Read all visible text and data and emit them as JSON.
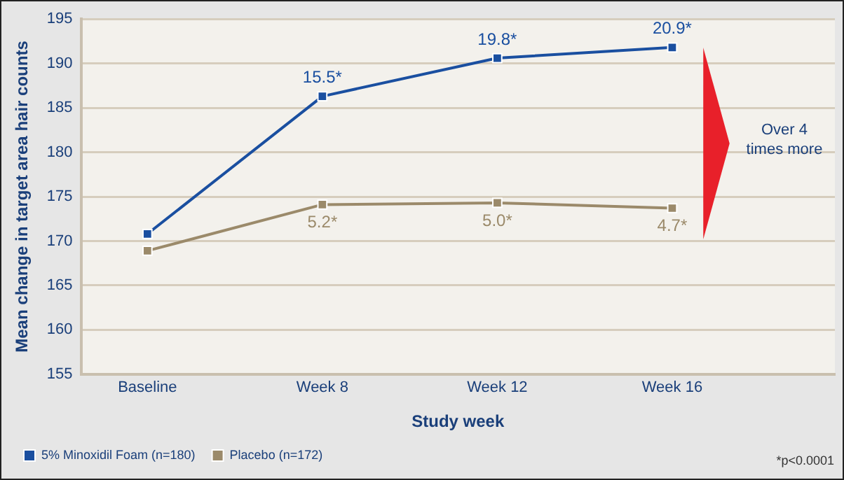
{
  "chart_data": {
    "type": "line",
    "xlabel": "Study week",
    "ylabel": "Mean change in target area hair counts",
    "categories": [
      "Baseline",
      "Week 8",
      "Week 12",
      "Week 16"
    ],
    "series": [
      {
        "name": "5% Minoxidil Foam (n=180)",
        "color": "#1a4fa0",
        "values": [
          170.8,
          186.3,
          190.6,
          191.8
        ]
      },
      {
        "name": "Placebo (n=172)",
        "color": "#9b8a6a",
        "values": [
          168.9,
          174.1,
          174.3,
          173.7
        ]
      }
    ],
    "ylim": [
      155,
      195
    ],
    "yticks": [
      155,
      160,
      165,
      170,
      175,
      180,
      185,
      190,
      195
    ],
    "grid": "y",
    "legend": "bottom left",
    "marker": "square",
    "line_style": "solid",
    "annotations": [
      {
        "text": "15.5*",
        "x": "Week 8",
        "y": 186.3
      },
      {
        "text": "19.8*",
        "x": "Week 12",
        "y": 190.6
      },
      {
        "text": "20.9*",
        "x": "Week 16",
        "y": 191.8
      },
      {
        "text": "5.2*",
        "x": "Week 8",
        "y": 174.1
      },
      {
        "text": "5.0*",
        "x": "Week 12",
        "y": 174.3
      },
      {
        "text": "4.7*",
        "x": "Week 16",
        "y": 173.7
      },
      "Over 4 times more",
      "*p<0.0001"
    ]
  }
}
